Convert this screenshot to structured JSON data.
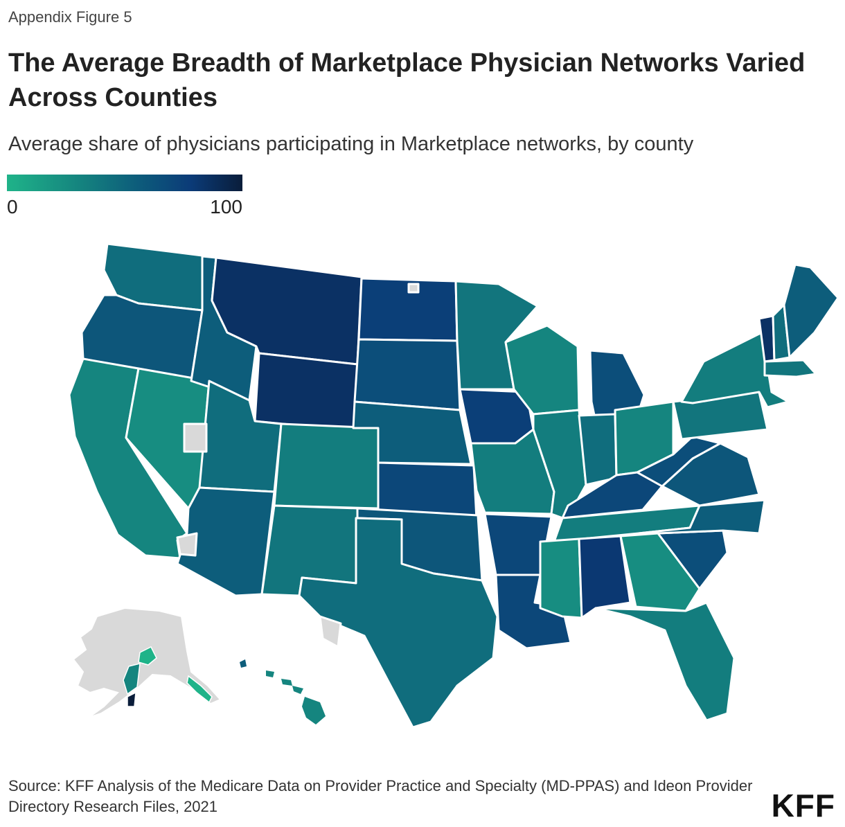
{
  "figure_label": "Appendix Figure 5",
  "title": "The Average Breadth of Marketplace Physician Networks Varied Across Counties",
  "subtitle": "Average share of physicians participating in Marketplace networks, by county",
  "legend": {
    "min_label": "0",
    "max_label": "100",
    "min_color": "#1fb389",
    "max_color": "#0a1d3a"
  },
  "source": "Source: KFF Analysis of the Medicare Data on Provider Practice and Specialty (MD-PPAS) and Ideon Provider Directory Research Files, 2021",
  "logo": "KFF",
  "colors": {
    "no_data": "#d9d9d9",
    "border": "#ffffff"
  },
  "chart_data": {
    "type": "choropleth",
    "geography": "US counties",
    "value_label": "Average share of physicians participating in Marketplace networks",
    "range": [
      0,
      100
    ],
    "approx_state_levels": [
      {
        "state": "Washington",
        "value": 45
      },
      {
        "state": "Oregon",
        "value": 60
      },
      {
        "state": "California",
        "value": 30
      },
      {
        "state": "Nevada",
        "value": 25
      },
      {
        "state": "Idaho",
        "value": 55
      },
      {
        "state": "Montana",
        "value": 85
      },
      {
        "state": "Wyoming",
        "value": 85
      },
      {
        "state": "Utah",
        "value": 45
      },
      {
        "state": "Arizona",
        "value": 55
      },
      {
        "state": "Colorado",
        "value": 35
      },
      {
        "state": "New Mexico",
        "value": 40
      },
      {
        "state": "North Dakota",
        "value": 75
      },
      {
        "state": "South Dakota",
        "value": 65
      },
      {
        "state": "Nebraska",
        "value": 55
      },
      {
        "state": "Kansas",
        "value": 70
      },
      {
        "state": "Oklahoma",
        "value": 60
      },
      {
        "state": "Texas",
        "value": 45
      },
      {
        "state": "Minnesota",
        "value": 40
      },
      {
        "state": "Iowa",
        "value": 75
      },
      {
        "state": "Missouri",
        "value": 35
      },
      {
        "state": "Arkansas",
        "value": 70
      },
      {
        "state": "Louisiana",
        "value": 70
      },
      {
        "state": "Wisconsin",
        "value": 30
      },
      {
        "state": "Illinois",
        "value": 35
      },
      {
        "state": "Michigan",
        "value": 65
      },
      {
        "state": "Indiana",
        "value": 45
      },
      {
        "state": "Ohio",
        "value": 30
      },
      {
        "state": "Kentucky",
        "value": 70
      },
      {
        "state": "Tennessee",
        "value": 35
      },
      {
        "state": "Mississippi",
        "value": 25
      },
      {
        "state": "Alabama",
        "value": 80
      },
      {
        "state": "Georgia",
        "value": 25
      },
      {
        "state": "Florida",
        "value": 35
      },
      {
        "state": "South Carolina",
        "value": 65
      },
      {
        "state": "North Carolina",
        "value": 55
      },
      {
        "state": "Virginia",
        "value": 60
      },
      {
        "state": "West Virginia",
        "value": 65
      },
      {
        "state": "Pennsylvania",
        "value": 40
      },
      {
        "state": "New York",
        "value": 35
      },
      {
        "state": "Vermont",
        "value": 85
      },
      {
        "state": "New Hampshire",
        "value": 45
      },
      {
        "state": "Maine",
        "value": 55
      },
      {
        "state": "Massachusetts",
        "value": 40
      },
      {
        "state": "Alaska",
        "value": null
      },
      {
        "state": "Hawaii",
        "value": 40
      }
    ]
  }
}
